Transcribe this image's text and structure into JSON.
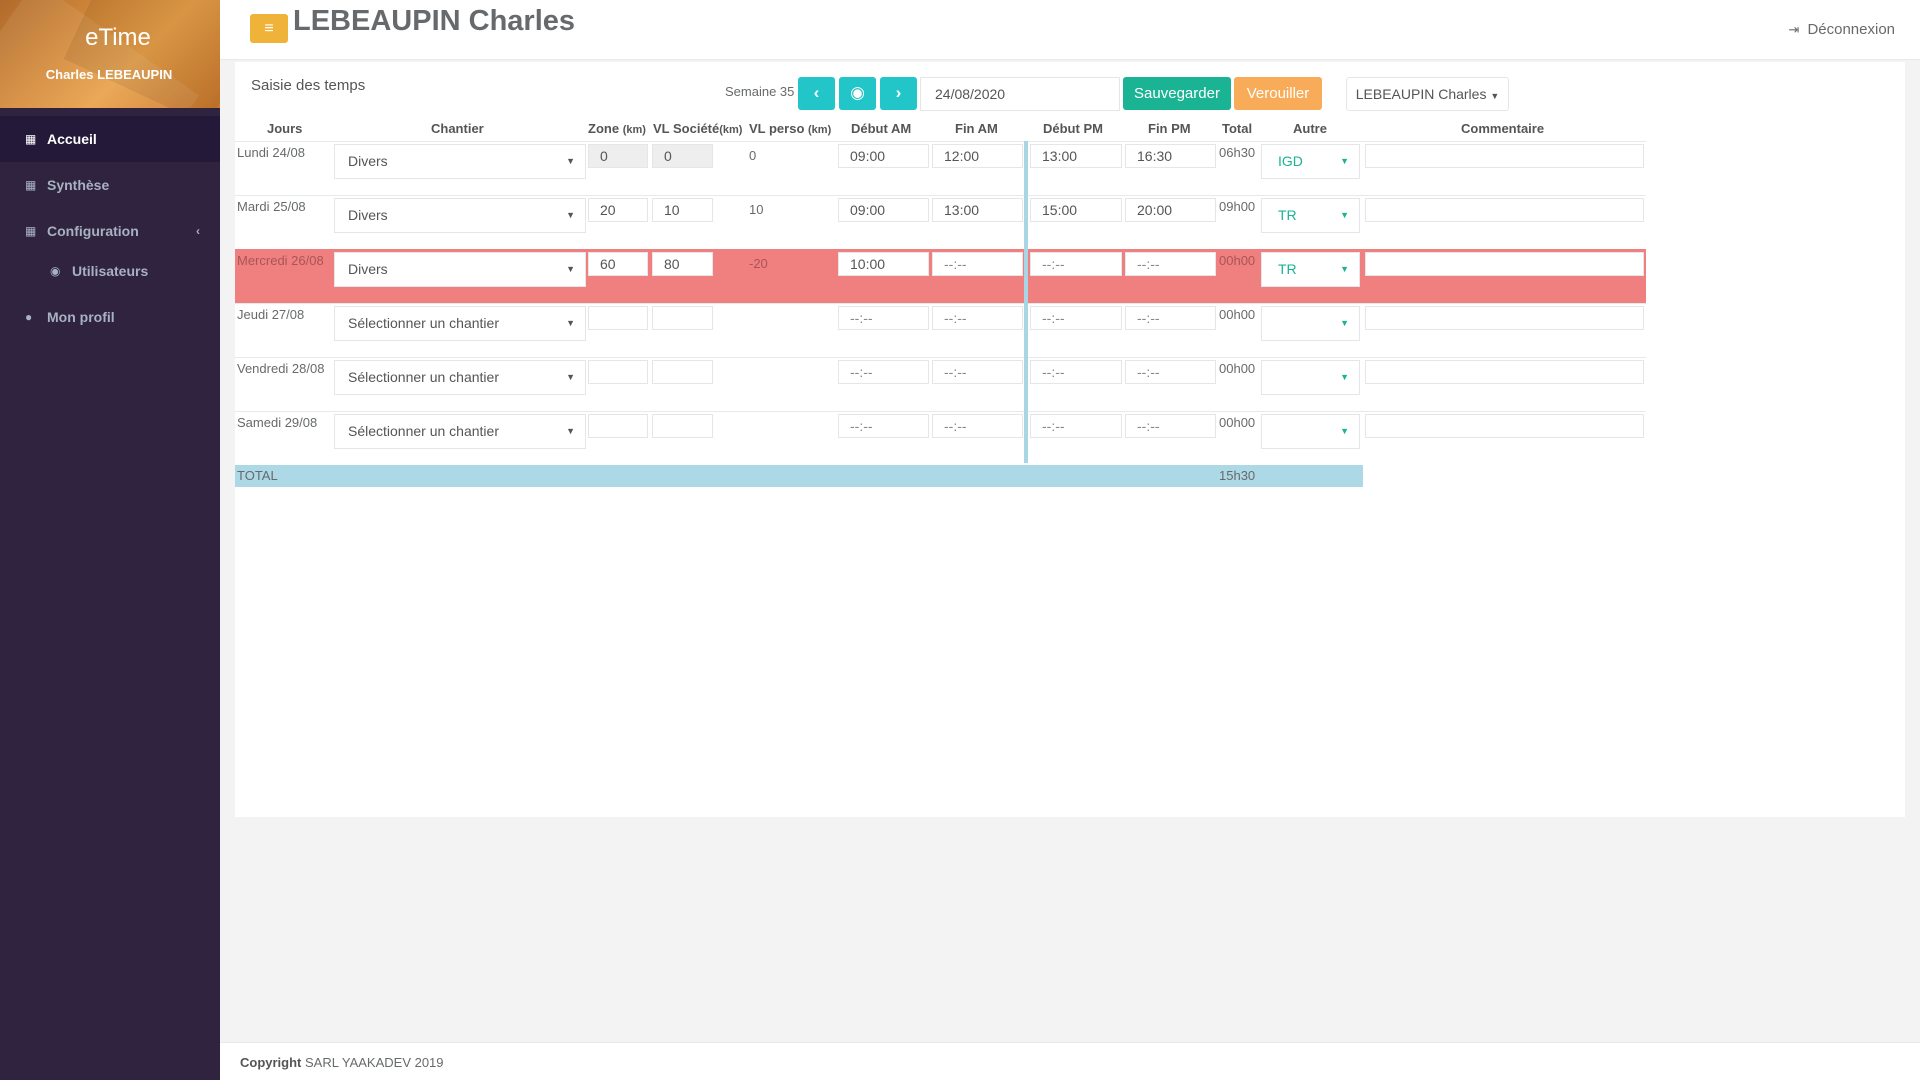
{
  "sidebar": {
    "app_name": "eTime",
    "user_name": "Charles LEBEAUPIN",
    "items": [
      {
        "label": "Accueil",
        "icon": "grid-icon",
        "active": true
      },
      {
        "label": "Synthèse",
        "icon": "grid-icon"
      },
      {
        "label": "Configuration",
        "icon": "grid-icon"
      },
      {
        "label": "Utilisateurs",
        "icon": "user-circle-icon"
      },
      {
        "label": "Mon profil",
        "icon": "user-icon"
      }
    ]
  },
  "header": {
    "title": "LEBEAUPIN Charles",
    "logout_label": "Déconnexion"
  },
  "toolbar": {
    "box_title": "Saisie des temps",
    "week_label": "Semaine 35",
    "date": "24/08/2020",
    "save_label": "Sauvegarder",
    "lock_label": "Verouiller",
    "user_select": "LEBEAUPIN Charles"
  },
  "table": {
    "headers": {
      "jours": "Jours",
      "chantier": "Chantier",
      "zone": "Zone",
      "zone_unit": "(km)",
      "vl_societe": "VL Société",
      "vl_societe_unit": "(km)",
      "vl_perso": "VL perso",
      "vl_perso_unit": "(km)",
      "debut_am": "Début AM",
      "fin_am": "Fin AM",
      "debut_pm": "Début PM",
      "fin_pm": "Fin PM",
      "total": "Total",
      "autre": "Autre",
      "commentaire": "Commentaire"
    },
    "time_placeholder": "--:--",
    "chantier_placeholder": "Sélectionner un chantier",
    "rows": [
      {
        "day": "Lundi 24/08",
        "chantier": "Divers",
        "zone": "0",
        "vl_societe": "0",
        "vl_perso": "0",
        "debut_am": "09:00",
        "fin_am": "12:00",
        "debut_pm": "13:00",
        "fin_pm": "16:30",
        "total": "06h30",
        "autre": "IGD",
        "commentaire": ""
      },
      {
        "day": "Mardi 25/08",
        "chantier": "Divers",
        "zone": "20",
        "vl_societe": "10",
        "vl_perso": "10",
        "debut_am": "09:00",
        "fin_am": "13:00",
        "debut_pm": "15:00",
        "fin_pm": "20:00",
        "total": "09h00",
        "autre": "TR",
        "commentaire": ""
      },
      {
        "day": "Mercredi 26/08",
        "chantier": "Divers",
        "zone": "60",
        "vl_societe": "80",
        "vl_perso": "-20",
        "debut_am": "10:00",
        "fin_am": "--:--",
        "debut_pm": "--:--",
        "fin_pm": "--:--",
        "total": "00h00",
        "autre": "TR",
        "commentaire": "",
        "highlight": true
      },
      {
        "day": "Jeudi 27/08",
        "chantier": "Sélectionner un chantier",
        "zone": "",
        "vl_societe": "",
        "vl_perso": "",
        "debut_am": "--:--",
        "fin_am": "--:--",
        "debut_pm": "--:--",
        "fin_pm": "--:--",
        "total": "00h00",
        "autre": "",
        "commentaire": ""
      },
      {
        "day": "Vendredi 28/08",
        "chantier": "Sélectionner un chantier",
        "zone": "",
        "vl_societe": "",
        "vl_perso": "",
        "debut_am": "--:--",
        "fin_am": "--:--",
        "debut_pm": "--:--",
        "fin_pm": "--:--",
        "total": "00h00",
        "autre": "",
        "commentaire": ""
      },
      {
        "day": "Samedi 29/08",
        "chantier": "Sélectionner un chantier",
        "zone": "",
        "vl_societe": "",
        "vl_perso": "",
        "debut_am": "--:--",
        "fin_am": "--:--",
        "debut_pm": "--:--",
        "fin_pm": "--:--",
        "total": "00h00",
        "autre": "",
        "commentaire": ""
      }
    ],
    "total_label": "TOTAL",
    "total_value": "15h30"
  },
  "footer": {
    "copyright_label": "Copyright",
    "company": "SARL YAAKADEV 2019"
  },
  "colors": {
    "sidebar_bg": "#2f2340",
    "accent_teal": "#23c6c8",
    "save_green": "#1ab394",
    "lock_orange": "#f8ac59",
    "highlight_row": "#f08080",
    "total_row": "#add8e6"
  }
}
